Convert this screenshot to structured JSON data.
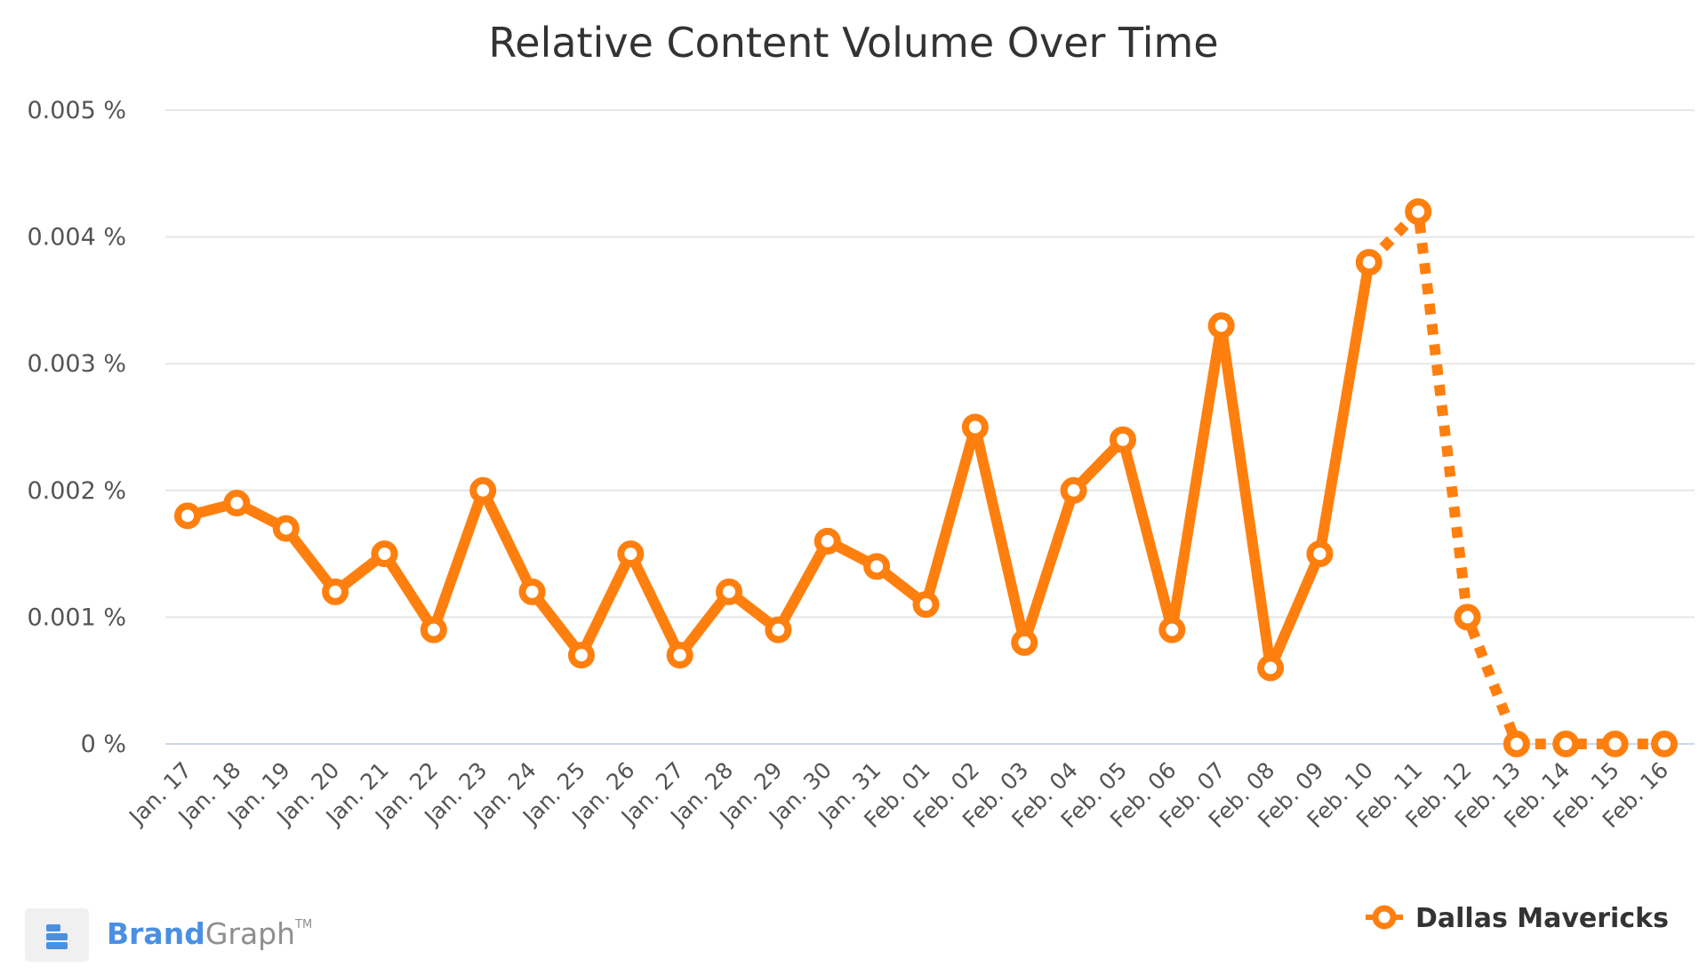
{
  "chart_data": {
    "type": "line",
    "title": "Relative Content Volume Over Time",
    "categories": [
      "Jan. 17",
      "Jan. 18",
      "Jan. 19",
      "Jan. 20",
      "Jan. 21",
      "Jan. 22",
      "Jan. 23",
      "Jan. 24",
      "Jan. 25",
      "Jan. 26",
      "Jan. 27",
      "Jan. 28",
      "Jan. 29",
      "Jan. 30",
      "Jan. 31",
      "Feb. 01",
      "Feb. 02",
      "Feb. 03",
      "Feb. 04",
      "Feb. 05",
      "Feb. 06",
      "Feb. 07",
      "Feb. 08",
      "Feb. 09",
      "Feb. 10",
      "Feb. 11",
      "Feb. 12",
      "Feb. 13",
      "Feb. 14",
      "Feb. 15",
      "Feb. 16"
    ],
    "series": [
      {
        "name": "Dallas Mavericks",
        "color": "#ff7f0e",
        "values": [
          0.0018,
          0.0019,
          0.0017,
          0.0012,
          0.0015,
          0.0009,
          0.002,
          0.0012,
          0.0007,
          0.0015,
          0.0007,
          0.0012,
          0.0009,
          0.0016,
          0.0014,
          0.0011,
          0.0025,
          0.0008,
          0.002,
          0.0024,
          0.0009,
          0.0033,
          0.0006,
          0.0015,
          0.0038,
          0.0042,
          0.001,
          0,
          0,
          0,
          0
        ],
        "solid_until_index": 24,
        "dashed_from_index": 24
      }
    ],
    "ylim": [
      0,
      0.005
    ],
    "yticks": [
      0,
      0.001,
      0.002,
      0.003,
      0.004,
      0.005
    ],
    "ytick_labels": [
      "0 %",
      "0.001 %",
      "0.002 %",
      "0.003 %",
      "0.004 %",
      "0.005 %"
    ],
    "xlabel": "",
    "ylabel": "",
    "grid": true,
    "legend_position": "bottom-right"
  },
  "branding": {
    "brand": "Brand",
    "graph": "Graph",
    "tm": "TM"
  },
  "colors": {
    "line": "#ff7f0e",
    "grid": "#e6e6e6",
    "baseline": "#ccd6eb",
    "logo_blue": "#4a90e2"
  }
}
